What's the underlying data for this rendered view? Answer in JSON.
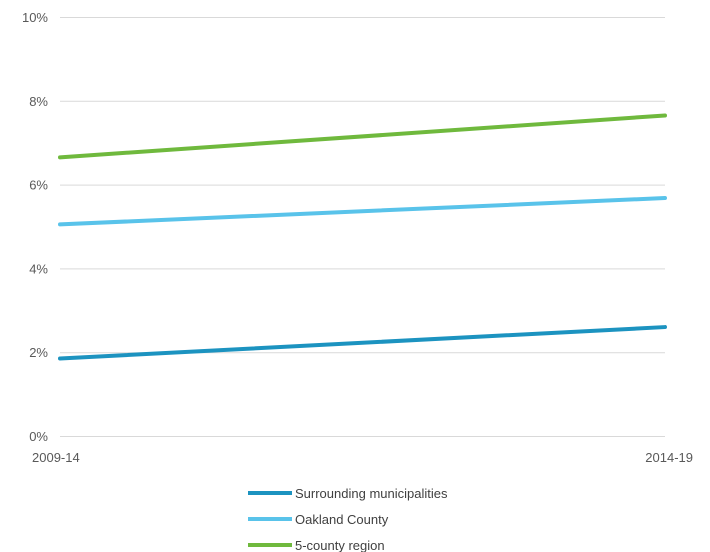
{
  "chart_data": {
    "type": "line",
    "categories": [
      "2009-14",
      "2014-19"
    ],
    "series": [
      {
        "name": "Surrounding municipalities",
        "values": [
          1.85,
          2.6
        ],
        "color": "#1c93c0"
      },
      {
        "name": "Oakland County",
        "values": [
          5.05,
          5.68
        ],
        "color": "#59c3ea"
      },
      {
        "name": "5-county region",
        "values": [
          6.65,
          7.65
        ],
        "color": "#6fb93d"
      }
    ],
    "ylim": [
      0,
      10
    ],
    "yticks": [
      "0%",
      "2%",
      "4%",
      "6%",
      "8%",
      "10%"
    ],
    "ytick_values": [
      0,
      2,
      4,
      6,
      8,
      10
    ],
    "grid": true,
    "legend_position": "bottom",
    "title": "",
    "xlabel": "",
    "ylabel": ""
  }
}
